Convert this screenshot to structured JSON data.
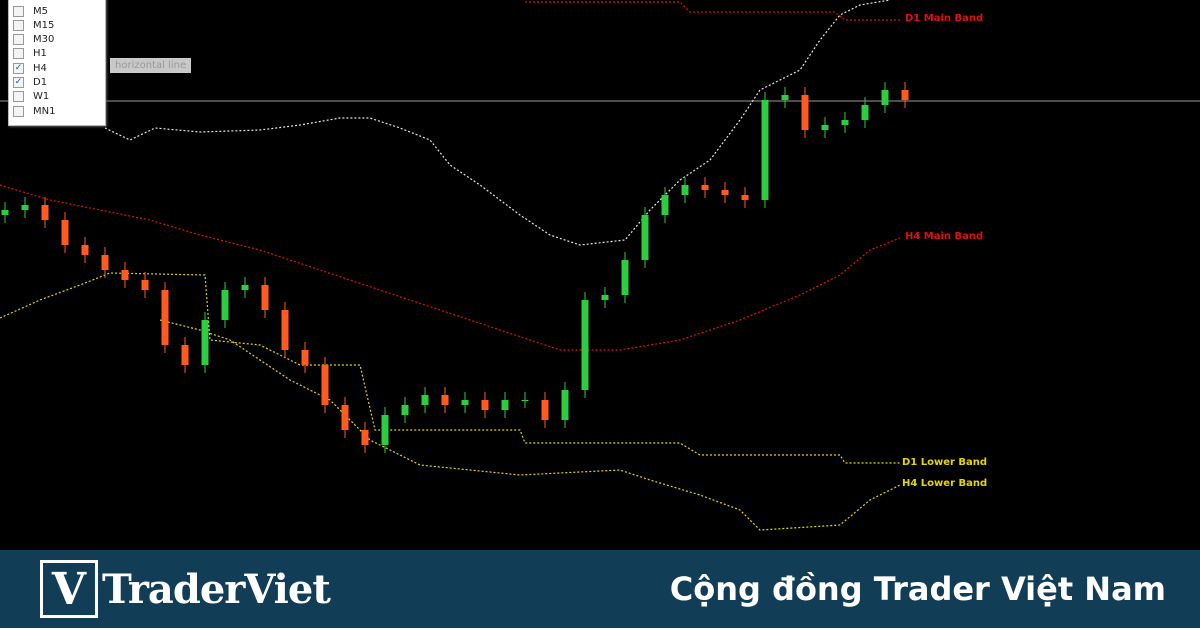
{
  "chart_data": {
    "type": "candlestick",
    "title": "",
    "xlabel": "",
    "ylabel": "",
    "ylim": [
      0,
      550
    ],
    "grid": false,
    "colors": {
      "up": "#2ecc40",
      "down": "#ff5a1f",
      "main_band": "#e01010",
      "upper_band": "#e6e6e6",
      "lower_band": "#e6d600",
      "horizontal_line": "#9a9a9a"
    },
    "candles": {
      "open": [
        335,
        340,
        345,
        330,
        305,
        295,
        280,
        270,
        260,
        205,
        185,
        230,
        260,
        265,
        240,
        200,
        185,
        145,
        120,
        105,
        135,
        145,
        155,
        145,
        150,
        140,
        150,
        150,
        130,
        160,
        250,
        255,
        290,
        335,
        355,
        365,
        360,
        355,
        350,
        450,
        455,
        420,
        425,
        430,
        445,
        460
      ],
      "high": [
        348,
        353,
        353,
        338,
        313,
        303,
        288,
        278,
        268,
        213,
        238,
        268,
        273,
        273,
        248,
        208,
        193,
        153,
        128,
        143,
        153,
        163,
        163,
        158,
        158,
        158,
        158,
        158,
        168,
        258,
        263,
        298,
        343,
        363,
        373,
        373,
        368,
        363,
        458,
        463,
        463,
        433,
        438,
        453,
        468,
        468
      ],
      "low": [
        327,
        332,
        322,
        297,
        287,
        272,
        262,
        252,
        197,
        177,
        177,
        222,
        252,
        232,
        192,
        177,
        137,
        112,
        97,
        97,
        127,
        137,
        137,
        137,
        132,
        132,
        142,
        122,
        122,
        152,
        242,
        247,
        282,
        327,
        347,
        352,
        347,
        342,
        342,
        442,
        412,
        412,
        417,
        422,
        437,
        442
      ],
      "close": [
        340,
        345,
        330,
        305,
        295,
        280,
        270,
        260,
        205,
        185,
        230,
        260,
        265,
        240,
        200,
        185,
        145,
        120,
        105,
        135,
        145,
        155,
        145,
        150,
        140,
        150,
        150,
        130,
        160,
        250,
        255,
        290,
        335,
        355,
        365,
        360,
        355,
        350,
        450,
        455,
        420,
        425,
        430,
        445,
        460,
        450
      ]
    },
    "horizontal_line": 449,
    "bands": [
      {
        "name": "D1 Main Band",
        "color": "#e01010",
        "points": [
          [
            26,
            548
          ],
          [
            33.75,
            548
          ],
          [
            34.25,
            538
          ],
          [
            41.5,
            538
          ],
          [
            42,
            530
          ],
          [
            44.75,
            530
          ]
        ]
      },
      {
        "name": "",
        "color": "#e6e6e6",
        "points": [
          [
            5,
            422
          ],
          [
            6.25,
            410
          ],
          [
            7.5,
            422
          ],
          [
            9.75,
            418
          ],
          [
            12.75,
            420
          ],
          [
            14.75,
            425
          ],
          [
            16.75,
            432
          ],
          [
            18.25,
            432
          ],
          [
            19.75,
            422
          ],
          [
            21.25,
            410
          ],
          [
            22.25,
            385
          ],
          [
            23.75,
            365
          ],
          [
            25.75,
            335
          ],
          [
            27.25,
            315
          ],
          [
            28.75,
            305
          ],
          [
            31,
            310
          ],
          [
            32.25,
            340
          ],
          [
            33.75,
            370
          ],
          [
            35.25,
            390
          ],
          [
            36.75,
            430
          ],
          [
            37.75,
            460
          ],
          [
            39.75,
            480
          ],
          [
            40.75,
            510
          ],
          [
            41.75,
            535
          ],
          [
            42.75,
            545
          ],
          [
            44.25,
            550
          ]
        ]
      },
      {
        "name": "H4 Main Band",
        "color": "#e01010",
        "points": [
          [
            -0.25,
            365
          ],
          [
            2.25,
            350
          ],
          [
            4.75,
            340
          ],
          [
            7.25,
            330
          ],
          [
            9.75,
            315
          ],
          [
            12.75,
            300
          ],
          [
            15.75,
            280
          ],
          [
            18.75,
            260
          ],
          [
            21.75,
            240
          ],
          [
            24.75,
            220
          ],
          [
            27.75,
            200
          ],
          [
            30.75,
            200
          ],
          [
            33.75,
            210
          ],
          [
            36.75,
            230
          ],
          [
            39.75,
            255
          ],
          [
            41.75,
            275
          ],
          [
            43.25,
            300
          ],
          [
            44.75,
            312
          ]
        ]
      },
      {
        "name": "D1 Lower Band",
        "color": "#e6d600",
        "points": [
          [
            -0.25,
            232
          ],
          [
            1.75,
            250
          ],
          [
            3.75,
            265
          ],
          [
            5.25,
            277
          ],
          [
            10,
            275
          ],
          [
            10.25,
            210
          ],
          [
            12.75,
            205
          ],
          [
            14.75,
            185
          ],
          [
            17.75,
            185
          ],
          [
            18.5,
            120
          ],
          [
            25.75,
            120
          ],
          [
            26,
            107
          ],
          [
            33.75,
            107
          ],
          [
            34.75,
            95
          ],
          [
            41.75,
            95
          ],
          [
            42,
            87
          ],
          [
            44.75,
            87
          ]
        ]
      },
      {
        "name": "H4 Lower Band",
        "color": "#e6d600",
        "points": [
          [
            7.75,
            230
          ],
          [
            9.75,
            220
          ],
          [
            11.25,
            210
          ],
          [
            14.25,
            170
          ],
          [
            16.25,
            150
          ],
          [
            18.25,
            110
          ],
          [
            20.75,
            85
          ],
          [
            25.75,
            75
          ],
          [
            30.75,
            80
          ],
          [
            32.25,
            70
          ],
          [
            34.75,
            55
          ],
          [
            36.75,
            40
          ],
          [
            37.75,
            20
          ],
          [
            41.75,
            25
          ],
          [
            43.25,
            50
          ],
          [
            44.75,
            65
          ]
        ]
      }
    ]
  },
  "timeframes": [
    {
      "label": "M5",
      "checked": false
    },
    {
      "label": "M15",
      "checked": false
    },
    {
      "label": "M30",
      "checked": false
    },
    {
      "label": "H1",
      "checked": false
    },
    {
      "label": "H4",
      "checked": true
    },
    {
      "label": "D1",
      "checked": true
    },
    {
      "label": "W1",
      "checked": false
    },
    {
      "label": "MN1",
      "checked": false
    }
  ],
  "tooltip": "horizontal line",
  "labels": {
    "d1_main": "D1 Main Band",
    "h4_main": "H4 Main Band",
    "d1_lower": "D1 Lower Band",
    "h4_lower": "H4 Lower Band"
  },
  "footer": {
    "logo_mark": "V",
    "logo_text": "TraderViet",
    "tagline": "Cộng đồng Trader Việt Nam"
  }
}
